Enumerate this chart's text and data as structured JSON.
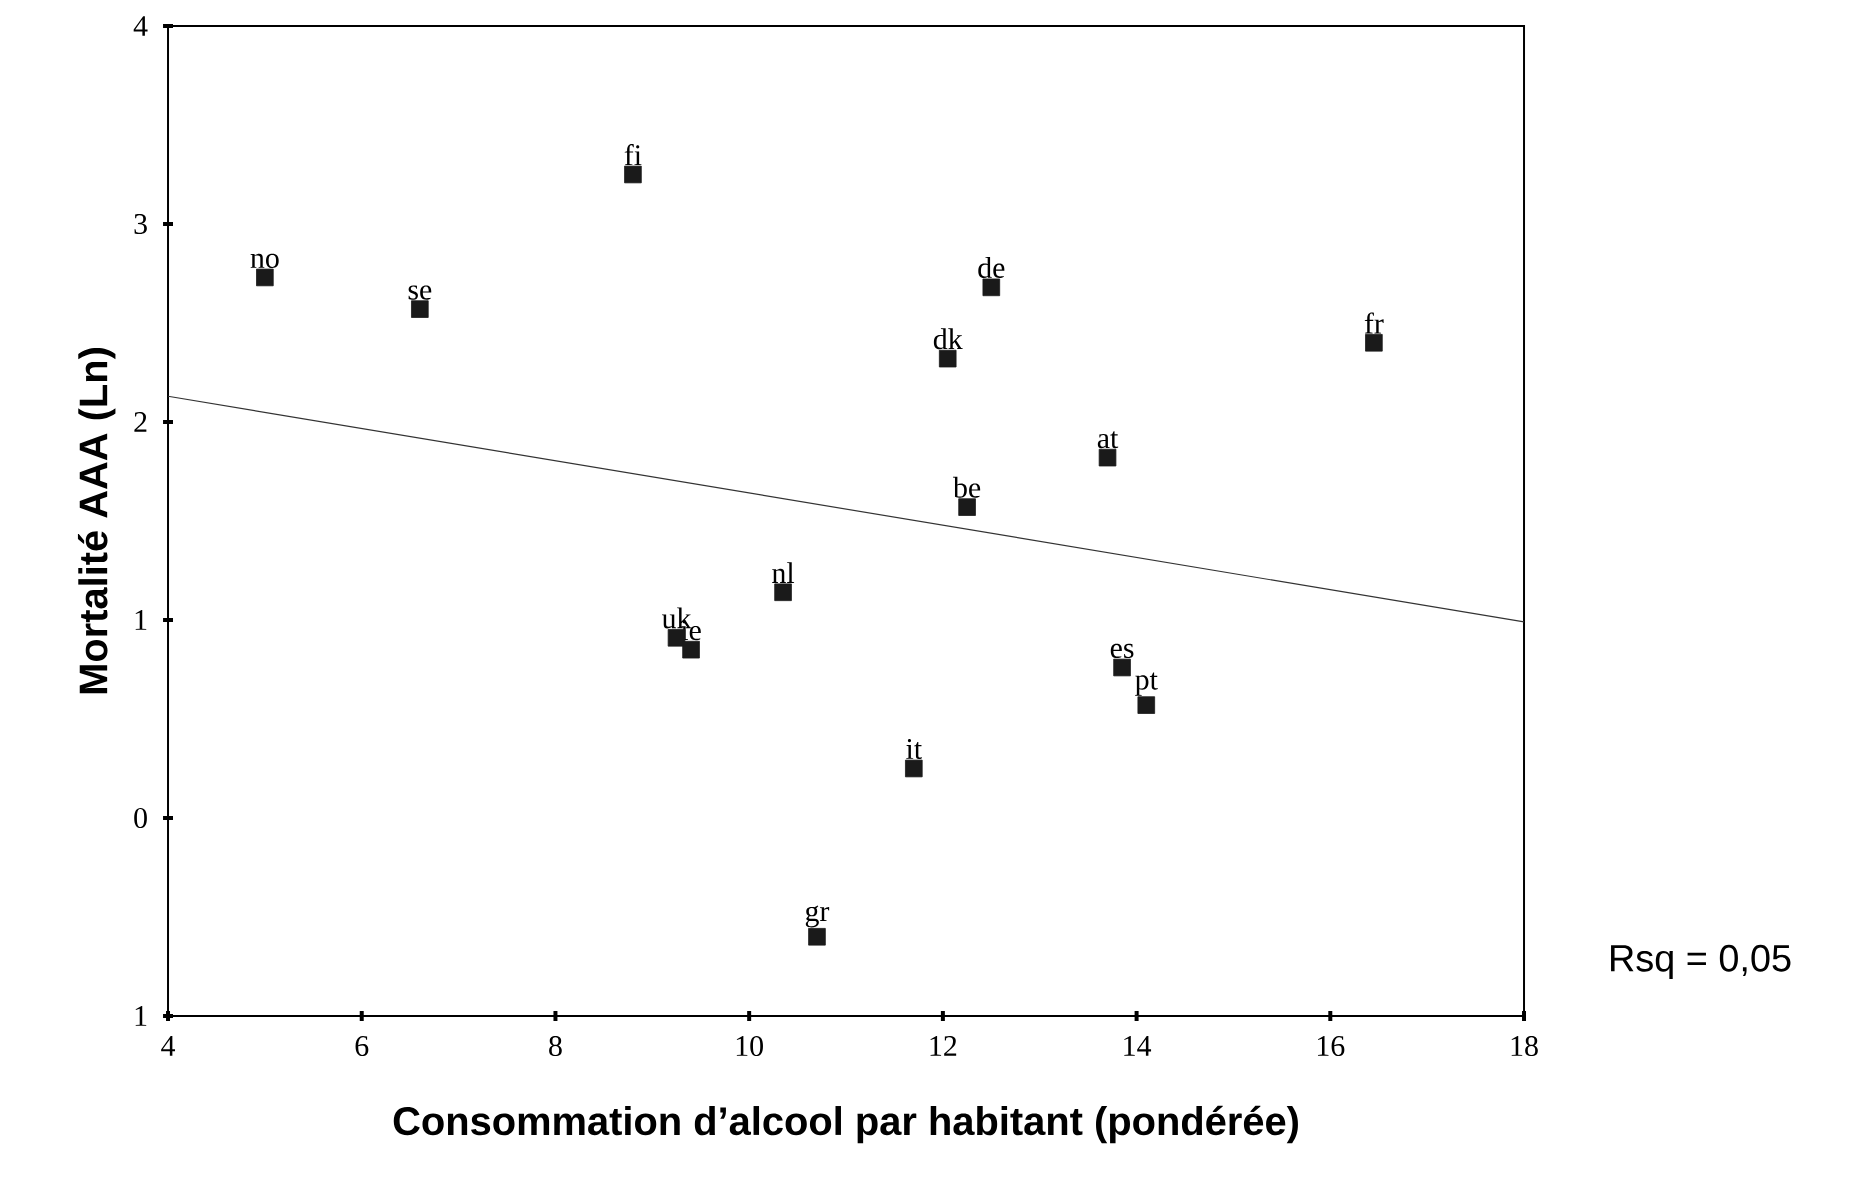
{
  "chart_data": {
    "type": "scatter",
    "xlabel": "Consommation d’alcool par habitant (pondérée)",
    "ylabel": "Mortalité AAA (Ln)",
    "annotations": [
      "Rsq = 0,05"
    ],
    "xlim": [
      4,
      18
    ],
    "xticks": [
      4,
      6,
      8,
      10,
      12,
      14,
      16,
      18
    ],
    "ylim": [
      -1,
      4
    ],
    "yticks": [
      {
        "value": -1,
        "label": "1"
      },
      0,
      1,
      2,
      3,
      4
    ],
    "grid": false,
    "marker": "square",
    "series": [
      {
        "color": "#1a1a1a",
        "x": [
          5.0,
          6.6,
          8.8,
          12.5,
          12.05,
          16.45,
          13.7,
          12.25,
          10.35,
          9.25,
          9.4,
          13.85,
          14.1,
          11.7,
          10.7
        ],
        "values": [
          2.73,
          2.57,
          3.25,
          2.68,
          2.32,
          2.4,
          1.82,
          1.57,
          1.14,
          0.91,
          0.85,
          0.76,
          0.57,
          0.25,
          -0.6
        ],
        "value_labels": [
          "no",
          "se",
          "fi",
          "de",
          "dk",
          "fr",
          "at",
          "be",
          "nl",
          "uk",
          "ie",
          "es",
          "pt",
          "it",
          "gr"
        ]
      },
      {
        "type": "line",
        "color": "#333333",
        "line_style": "solid",
        "marker": "none",
        "x": [
          4,
          18
        ],
        "values": [
          2.13,
          0.99
        ]
      }
    ]
  }
}
